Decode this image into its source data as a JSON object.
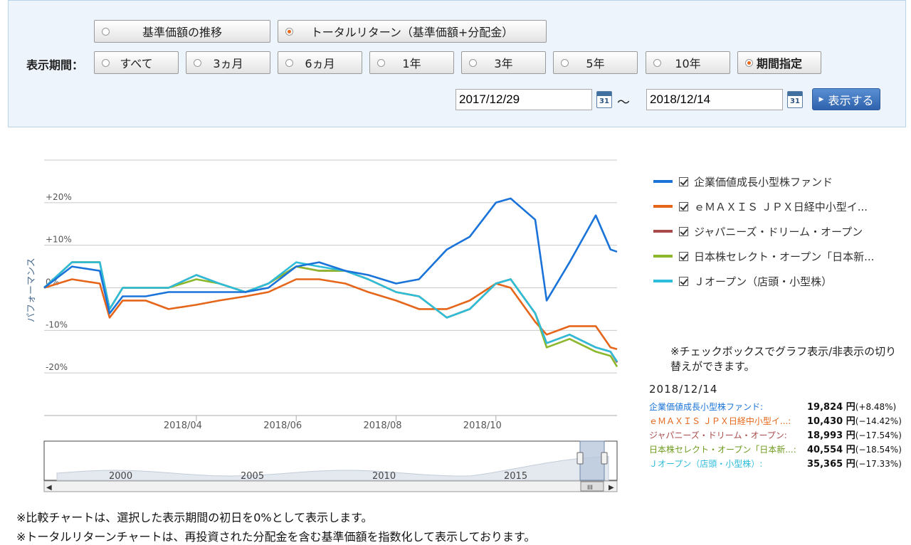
{
  "controls": {
    "chart_mode": [
      {
        "label": "基準価額の推移",
        "selected": false
      },
      {
        "label": "トータルリターン（基準価額+分配金）",
        "selected": true
      }
    ],
    "period_label": "表示期間：",
    "periods": [
      {
        "label": "すべて",
        "selected": false
      },
      {
        "label": "3ヵ月",
        "selected": false
      },
      {
        "label": "6ヵ月",
        "selected": false
      },
      {
        "label": "1年",
        "selected": false
      },
      {
        "label": "3年",
        "selected": false
      },
      {
        "label": "5年",
        "selected": false
      },
      {
        "label": "10年",
        "selected": false
      },
      {
        "label": "期間指定",
        "selected": true
      }
    ],
    "start_date": "2017/12/29",
    "tilde": "～",
    "end_date": "2018/12/14",
    "calendar_icon_text": "31",
    "show_button": "表示する"
  },
  "chart_data": {
    "type": "line",
    "ylabel": "パフォーマンス",
    "xlabel": "",
    "y_ticks": [
      "+20%",
      "+10%",
      "0%",
      "-10%",
      "-20%"
    ],
    "ylim": [
      -30,
      30
    ],
    "x_ticks": [
      "2018/04",
      "2018/06",
      "2018/08",
      "2018/10"
    ],
    "x_tick_positions": [
      "2018-04-01",
      "2018-06-01",
      "2018-08-01",
      "2018-10-01"
    ],
    "x": [
      "2017-12-29",
      "2018-01-15",
      "2018-02-01",
      "2018-02-07",
      "2018-02-15",
      "2018-03-01",
      "2018-03-15",
      "2018-04-01",
      "2018-04-15",
      "2018-05-01",
      "2018-05-15",
      "2018-06-01",
      "2018-06-15",
      "2018-07-01",
      "2018-07-15",
      "2018-08-01",
      "2018-08-15",
      "2018-09-01",
      "2018-09-15",
      "2018-10-01",
      "2018-10-10",
      "2018-10-25",
      "2018-11-01",
      "2018-11-15",
      "2018-12-01",
      "2018-12-10",
      "2018-12-14"
    ],
    "series": [
      {
        "name": "企業価値成長小型株ファンド",
        "color": "#1a73d9",
        "values": [
          0,
          5,
          4,
          -6,
          -2,
          -2,
          -1,
          -1,
          -1,
          -1,
          0,
          5,
          6,
          4,
          3,
          1,
          2,
          9,
          12,
          20,
          21,
          16,
          -3,
          6,
          17,
          9,
          8.48
        ]
      },
      {
        "name": "ｅＭＡＸＩＳ ＪＰＸ日経中小型インデックス",
        "color": "#e5661a",
        "values": [
          0,
          2,
          1,
          -7,
          -3,
          -3,
          -5,
          -4,
          -3,
          -2,
          -1,
          2,
          2,
          1,
          -1,
          -3,
          -5,
          -5,
          -3,
          1,
          0,
          -8,
          -11,
          -9,
          -9,
          -14,
          -14.42
        ]
      },
      {
        "name": "ジャパニーズ・ドリーム・オープン",
        "color": "#a94a4a",
        "values": [
          0,
          6,
          6,
          -5,
          0,
          0,
          0,
          3,
          1,
          -1,
          1,
          5,
          4,
          4,
          2,
          -1,
          -2,
          -7,
          -5,
          1,
          2,
          -6,
          -13,
          -11,
          -14,
          -15,
          -17.54
        ]
      },
      {
        "name": "日本株セレクト・オープン「日本新世代」",
        "color": "#8cb72d",
        "values": [
          0,
          6,
          6,
          -5,
          0,
          0,
          0,
          2,
          1,
          -1,
          1,
          5,
          4,
          4,
          2,
          -1,
          -2,
          -7,
          -5,
          1,
          2,
          -6,
          -14,
          -12,
          -15,
          -16,
          -18.54
        ]
      },
      {
        "name": "Ｊオープン（店頭・小型株）",
        "color": "#2dbcd9",
        "values": [
          0,
          6,
          6,
          -5,
          0,
          0,
          0,
          3,
          1,
          -1,
          1,
          6,
          5,
          4,
          2,
          -1,
          -2,
          -7,
          -5,
          1,
          2,
          -6,
          -13,
          -11,
          -14,
          -15,
          -17.33
        ]
      }
    ],
    "navigator": {
      "ticks": [
        "2000",
        "2005",
        "2010",
        "2015"
      ],
      "scroll_label": "III"
    },
    "legend_position": "right"
  },
  "summary": {
    "checkbox_note": "※チェックボックスでグラフ表示/非表示の切り替えができます。",
    "date": "2018/12/14",
    "rows": [
      {
        "name": "企業価値成長小型株ファンド:",
        "value": "19,824 円",
        "change": "(+8.48%)",
        "color": "#1a73d9"
      },
      {
        "name": "ｅＭＡＸＩＳ ＪＰＸ日経中小型イ...:",
        "value": "10,430 円",
        "change": "(−14.42%)",
        "color": "#e5661a"
      },
      {
        "name": "ジャパニーズ・ドリーム・オープン:",
        "value": "18,993 円",
        "change": "(−17.54%)",
        "color": "#a94a4a"
      },
      {
        "name": "日本株セレクト・オープン「日本新...:",
        "value": "40,554 円",
        "change": "(−18.54%)",
        "color": "#6f9b1f"
      },
      {
        "name": "Ｊオープン（店頭・小型株）:",
        "value": "35,365 円",
        "change": "(−17.33%)",
        "color": "#2dbcd9"
      }
    ]
  },
  "legend_display": [
    "企業価値成長小型株ファンド",
    "ｅＭＡＸＩＳ ＪＰＸ日経中小型イ...",
    "ジャパニーズ・ドリーム・オープン",
    "日本株セレクト・オープン「日本新...",
    "Ｊオープン（店頭・小型株）"
  ],
  "footnotes": [
    "※比較チャートは、選択した表示期間の初日を0%として表示します。",
    "※トータルリターンチャートは、再投資された分配金を含む基準価額を指数化して表示しております。"
  ]
}
